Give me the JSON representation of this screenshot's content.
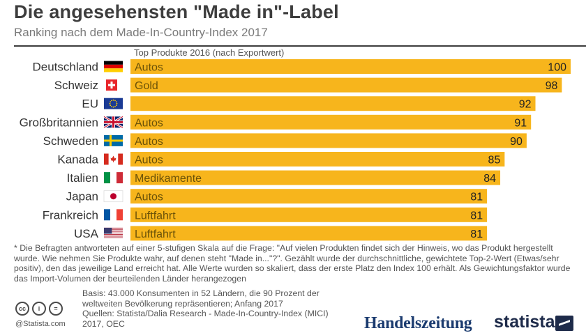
{
  "header": {
    "title": "Die angesehensten \"Made in\"-Label",
    "subtitle": "Ranking nach dem Made-In-Country-Index 2017",
    "column_header": "Top Produkte 2016 (nach Exportwert)"
  },
  "chart_data": {
    "type": "bar",
    "orientation": "horizontal",
    "categories": [
      "Deutschland",
      "Schweiz",
      "EU",
      "Großbritannien",
      "Schweden",
      "Kanada",
      "Italien",
      "Japan",
      "Frankreich",
      "USA"
    ],
    "values": [
      100,
      98,
      92,
      91,
      90,
      85,
      84,
      81,
      81,
      81
    ],
    "top_products": [
      "Autos",
      "Gold",
      "",
      "Autos",
      "Autos",
      "Autos",
      "Medikamente",
      "Autos",
      "Luftfahrt",
      "Luftfahrt"
    ],
    "flags": [
      "germany-flag",
      "switzerland-flag",
      "eu-flag",
      "uk-flag",
      "sweden-flag",
      "canada-flag",
      "italy-flag",
      "japan-flag",
      "france-flag",
      "usa-flag"
    ],
    "xlim": [
      0,
      100
    ],
    "bar_color": "#f7b51c",
    "title": "Die angesehensten \"Made in\"-Label",
    "grid": false
  },
  "footer": {
    "footnote": "* Die Befragten antworteten auf einer 5-stufigen Skala auf die Frage: \"Auf vielen Produkten findet sich der Hinweis, wo das Produkt hergestellt wurde. Wie nehmen Sie Produkte wahr, auf denen steht \"Made in...\"?\". Gezählt wurde der durchschnittliche, gewichtete Top-2-Wert (Etwas/sehr positiv), den das jeweilige Land erreicht hat. Alle Werte wurden so skaliert, dass der erste Platz den Index 100 erhält. Als Gewichtungsfaktor wurde das Import-Volumen der beurteilenden Länder herangezogen",
    "basis": "Basis: 43.000 Konsumenten in 52 Ländern, die 90 Prozent der weltweiten Bevölkerung repräsentieren; Anfang 2017",
    "sources": "Quellen: Statista/Dalia Research - Made-In-Country-Index (MICI) 2017, OEC",
    "copyright": "@Statista.com",
    "cc_icons": [
      "cc",
      "i",
      "="
    ],
    "brand_partner": "Handelszeitung",
    "brand": "statista"
  }
}
